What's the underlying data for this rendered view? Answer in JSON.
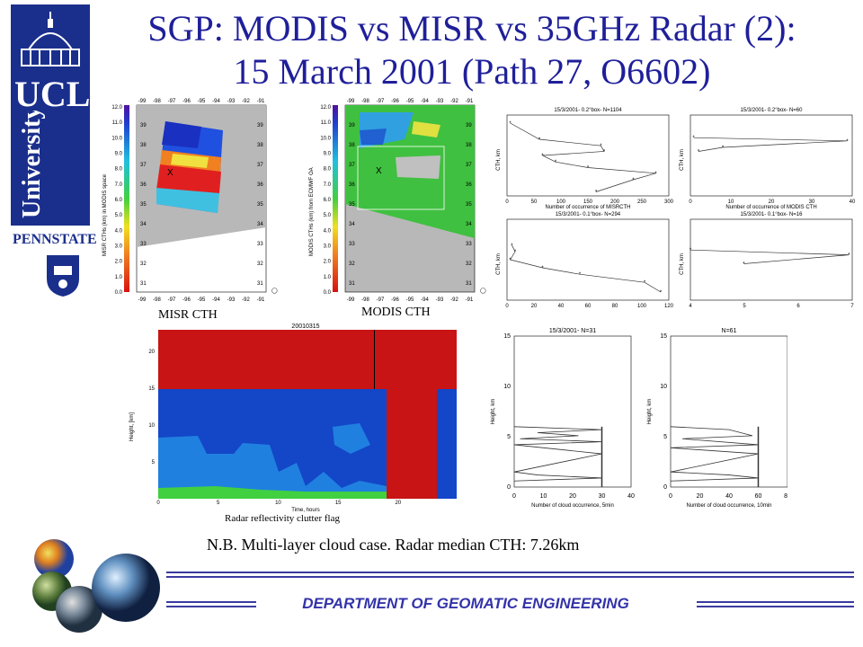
{
  "title": {
    "line1": "SGP: MODIS vs MISR vs 35GHz Radar (2):",
    "line2": "15 March 2001 (Path 27, O6602)"
  },
  "logos": {
    "ucl_abbrev": "UCL",
    "ucl_name": "University College London",
    "pennstate": "PENNSTATE"
  },
  "maps": {
    "misr_label": "MISR CTH",
    "modis_label": "MODIS CTH",
    "lon_ticks": [
      "-99",
      "-98",
      "-97",
      "-96",
      "-95",
      "-94",
      "-93",
      "-92",
      "-91"
    ],
    "lat_ticks": [
      "39",
      "38",
      "37",
      "36",
      "35",
      "34",
      "33",
      "32",
      "31"
    ],
    "colorbar_ticks": [
      "12.0",
      "11.0",
      "10.0",
      "9.0",
      "8.0",
      "7.0",
      "6.0",
      "5.0",
      "4.0",
      "3.0",
      "2.0",
      "1.0",
      "0.0"
    ],
    "misr_cbar_label": "MISR CTHs (km) in MODIS space",
    "modis_cbar_label": "MODIS CTHs (km) from ECMWF OA"
  },
  "histograms_top": [
    {
      "title": "15/3/2001- 0.2°box- N=1104",
      "xlabel": "Number of occurrence of MISRCTH",
      "ylabel": "CTH, km",
      "xticks": [
        "0",
        "50",
        "100",
        "150",
        "200",
        "250",
        "300"
      ]
    },
    {
      "title": "15/3/2001- 0.2°box- N=60",
      "xlabel": "Number of occurrence of MODIS CTH",
      "ylabel": "CTH, km",
      "xticks": [
        "0",
        "10",
        "20",
        "30",
        "40"
      ]
    },
    {
      "title": "15/3/2001- 0.1°box- N=294",
      "xlabel": "Number of occurrence of MISRCTH",
      "ylabel": "CTH, km",
      "xticks": [
        "0",
        "20",
        "40",
        "60",
        "80",
        "100",
        "120"
      ]
    },
    {
      "title": "15/3/2001- 0.1°box- N=16",
      "xlabel": "Number of occurrence of MODIS CTH",
      "ylabel": "CTH, km",
      "xticks": [
        "4",
        "5",
        "6",
        "7"
      ]
    }
  ],
  "radar": {
    "date": "20010315",
    "xlabel": "Time, hours",
    "ylabel": "Height, [km]",
    "xticks": [
      "0",
      "5",
      "10",
      "15",
      "20"
    ],
    "yticks": [
      "5",
      "10",
      "15",
      "20"
    ],
    "caption": "Radar reflectivity clutter flag"
  },
  "cloud_hists": [
    {
      "title": "15/3/2001- N=31",
      "xlabel": "Number of cloud occurrence, 5min",
      "ylabel": "Height, km",
      "xticks": [
        "0",
        "10",
        "20",
        "30",
        "40"
      ],
      "yticks": [
        "0",
        "5",
        "10",
        "15"
      ]
    },
    {
      "title": "N=61",
      "xlabel": "Number of cloud occurrence, 10min",
      "ylabel": "Height, km",
      "xticks": [
        "0",
        "20",
        "40",
        "60",
        "80"
      ],
      "yticks": [
        "0",
        "5",
        "10",
        "15"
      ]
    }
  ],
  "note": "N.B. Multi-layer cloud case. Radar median CTH: 7.26km",
  "footer": {
    "department": "DEPARTMENT  OF  GEOMATIC  ENGINEERING"
  },
  "colors": {
    "title": "#1f1f9a",
    "ucl_blue": "#1a2f8c",
    "radar_red": "#c81414",
    "radar_blue": "#1446c8",
    "footer_rule": "#3a3aa0"
  }
}
